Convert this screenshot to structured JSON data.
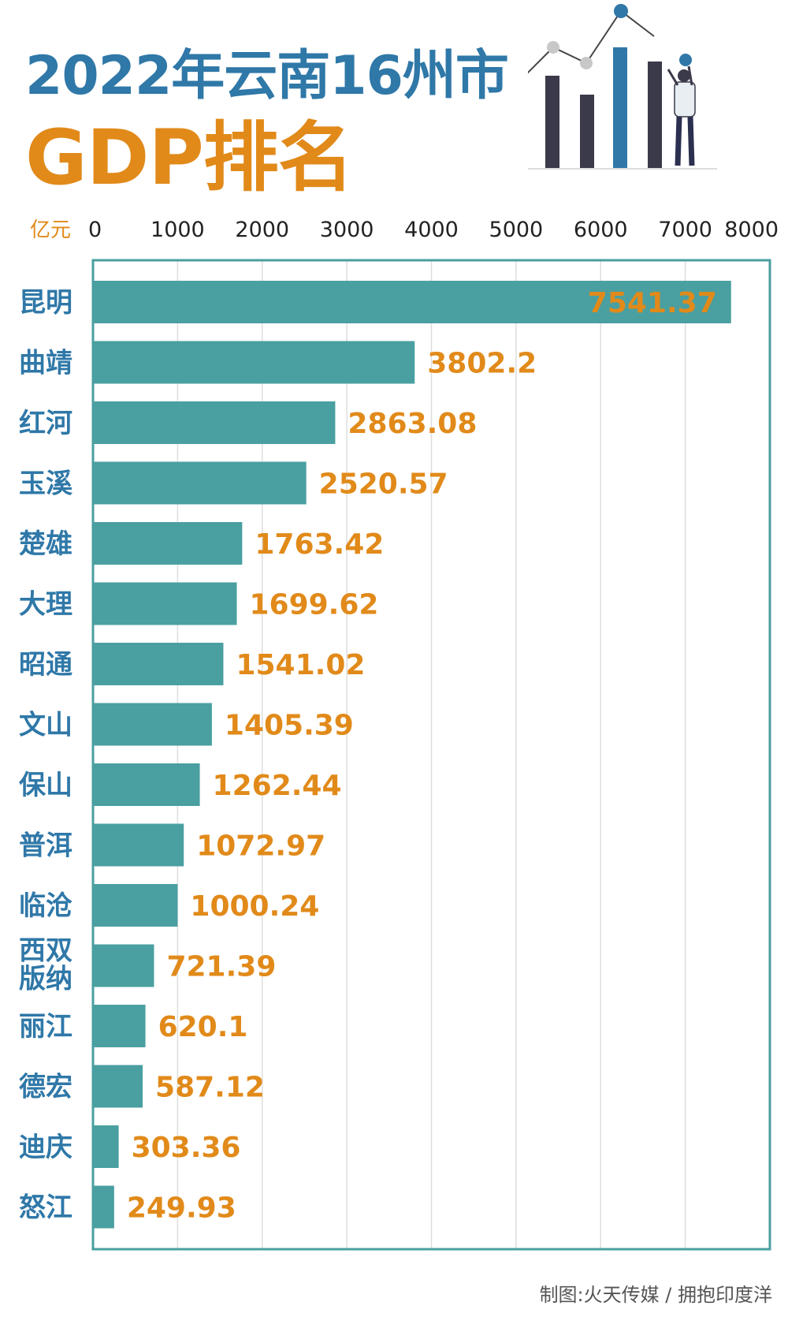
{
  "header": {
    "title_line1": "2022年云南16州市",
    "title_line2": "GDP排名"
  },
  "colors": {
    "bar": "#4a9fa0",
    "frame": "#4a9fa0",
    "value_label": "#e18a1a",
    "category_label": "#2f78a8",
    "title_line1": "#2f78a8",
    "title_line2": "#e18a1a"
  },
  "chart_data": {
    "type": "bar",
    "orientation": "horizontal",
    "unit_label": "亿元",
    "xlim": [
      0,
      8000
    ],
    "x_ticks": [
      0,
      1000,
      2000,
      3000,
      4000,
      5000,
      6000,
      7000,
      8000
    ],
    "grid": true,
    "categories": [
      "昆明",
      "曲靖",
      "红河",
      "玉溪",
      "楚雄",
      "大理",
      "昭通",
      "文山",
      "保山",
      "普洱",
      "临沧",
      "西双版纳",
      "丽江",
      "德宏",
      "迪庆",
      "怒江"
    ],
    "values": [
      7541.37,
      3802.2,
      2863.08,
      2520.57,
      1763.42,
      1699.62,
      1541.02,
      1405.39,
      1262.44,
      1072.97,
      1000.24,
      721.39,
      620.1,
      587.12,
      303.36,
      249.93
    ],
    "value_labels": [
      "7541.37",
      "3802.2",
      "2863.08",
      "2520.57",
      "1763.42",
      "1699.62",
      "1541.02",
      "1405.39",
      "1262.44",
      "1072.97",
      "1000.24",
      "721.39",
      "620.1",
      "587.12",
      "303.36",
      "249.93"
    ]
  },
  "footer": {
    "credit": "制图:火天传媒 / 拥抱印度洋"
  },
  "decoration": {
    "icon": "bar-chart-with-person-icon"
  }
}
